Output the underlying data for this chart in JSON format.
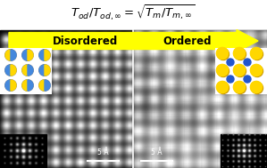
{
  "title_math": "$T_{od}/T_{od,\\infty} = \\sqrt{T_m/T_{m,\\infty}}$",
  "arrow_text_left": "Disordered",
  "arrow_text_right": "Ordered",
  "arrow_color": "#FFFF00",
  "arrow_text_color": "#000000",
  "bg_color": "#ffffff",
  "fig_width": 2.99,
  "fig_height": 1.89,
  "dpi": 100,
  "title_fontsize": 9.5,
  "arrow_fontsize": 8.5,
  "scalebar_text": "5 Å"
}
